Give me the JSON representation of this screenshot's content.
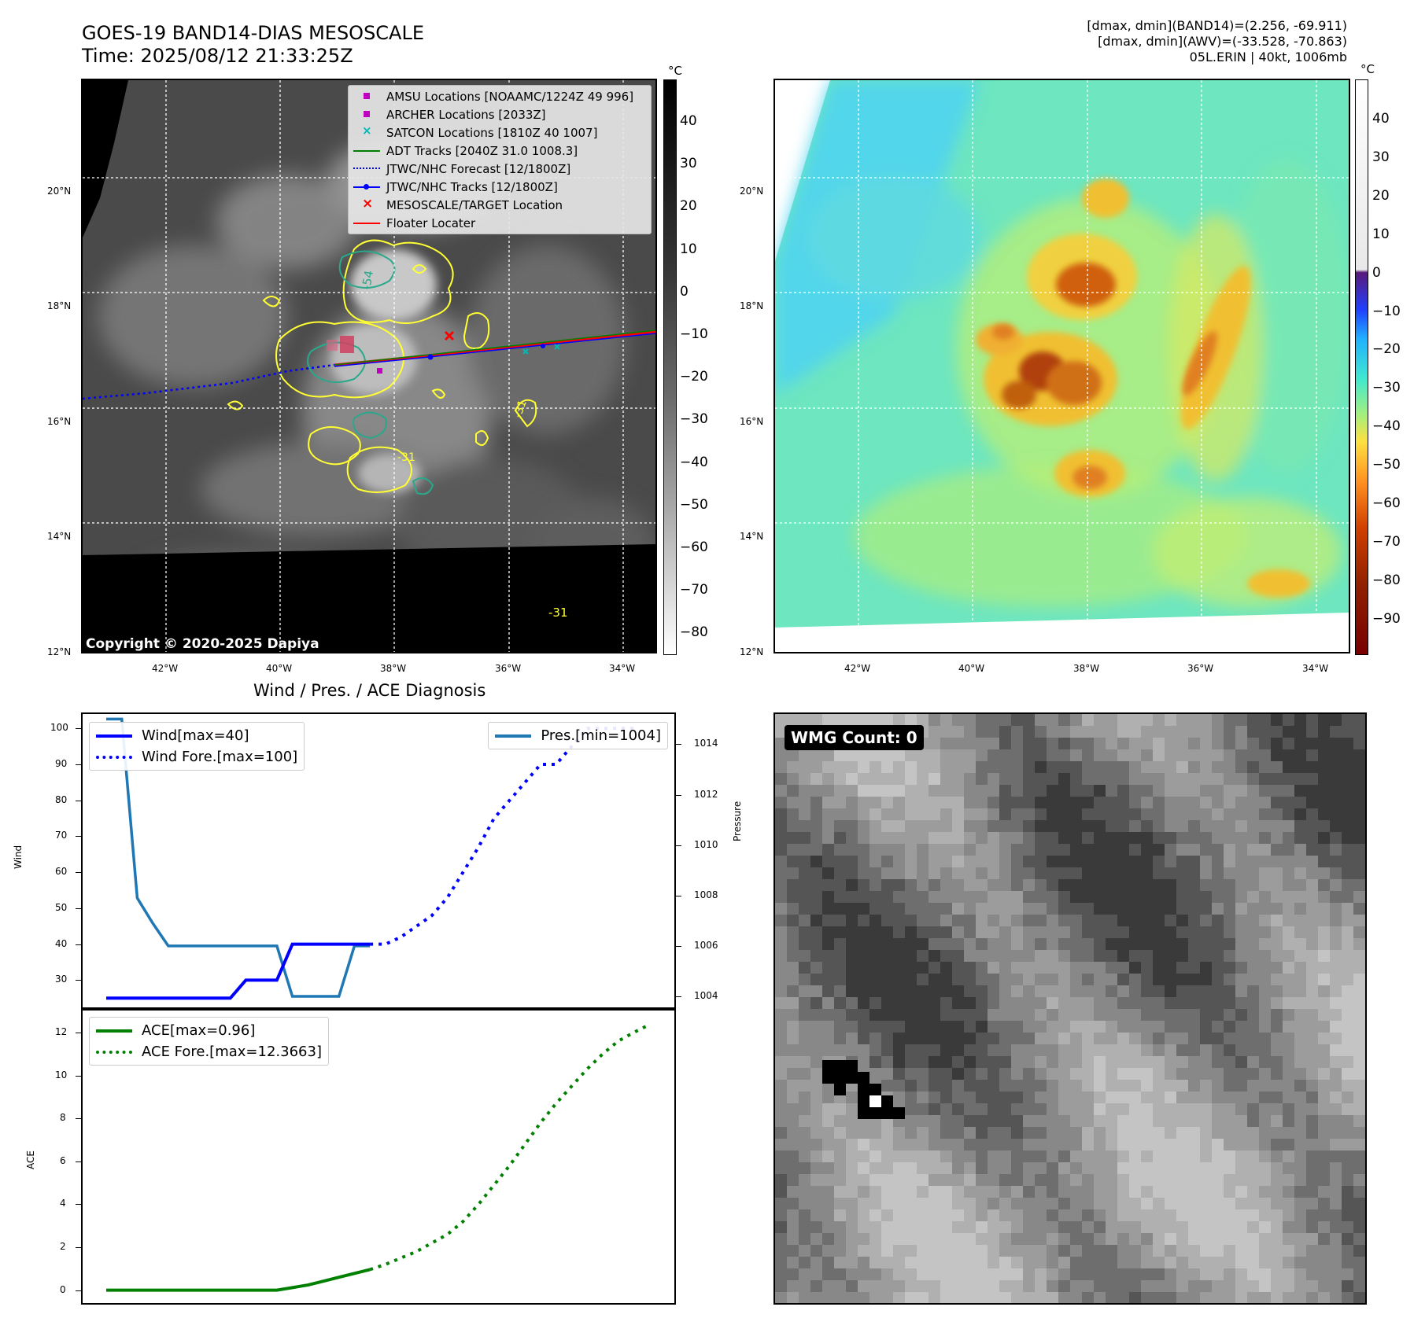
{
  "header": {
    "title_line1": "GOES-19 BAND14-DIAS MESOSCALE",
    "title_line2": "Time: 2025/08/12 21:33:25Z",
    "info_line1": "[dmax, dmin](BAND14)=(2.256, -69.911)",
    "info_line2": "[dmax, dmin](AWV)=(-33.528, -70.863)",
    "info_line3": "05L.ERIN | 40kt, 1006mb"
  },
  "ir_map": {
    "lat_labels": [
      "20°N",
      "18°N",
      "16°N",
      "14°N",
      "12°N"
    ],
    "lon_labels": [
      "42°W",
      "40°W",
      "38°W",
      "36°W",
      "34°W"
    ],
    "colorbar_unit": "°C",
    "colorbar_ticks": [
      "40",
      "30",
      "20",
      "10",
      "0",
      "−10",
      "−20",
      "−30",
      "−40",
      "−50",
      "−60",
      "−70",
      "−80"
    ],
    "contour_labels": [
      "-54",
      "-31",
      "-31",
      "-31"
    ],
    "copyright": "Copyright © 2020-2025 Dapiya",
    "legend": [
      {
        "label": "AMSU Locations [NOAAMC/1224Z 49 996]",
        "symbol": "square",
        "color": "#c000c0"
      },
      {
        "label": "ARCHER Locations [2033Z]",
        "symbol": "square",
        "color": "#c000c0"
      },
      {
        "label": "SATCON Locations [1810Z 40 1007]",
        "symbol": "x",
        "color": "#00b8b8"
      },
      {
        "label": "ADT Tracks [2040Z 31.0 1008.3]",
        "symbol": "line",
        "color": "#008000"
      },
      {
        "label": "JTWC/NHC Forecast [12/1800Z]",
        "symbol": "dotted",
        "color": "#0000ff"
      },
      {
        "label": "JTWC/NHC Tracks [12/1800Z]",
        "symbol": "line-dot",
        "color": "#0000ff"
      },
      {
        "label": "MESOSCALE/TARGET Location",
        "symbol": "x",
        "color": "#ff0000"
      },
      {
        "label": "Floater Locater",
        "symbol": "line",
        "color": "#ff0000"
      }
    ]
  },
  "wv_map": {
    "lat_labels": [
      "20°N",
      "18°N",
      "16°N",
      "14°N",
      "12°N"
    ],
    "lon_labels": [
      "42°W",
      "40°W",
      "38°W",
      "36°W",
      "34°W"
    ],
    "colorbar_unit": "°C",
    "colorbar_ticks": [
      "40",
      "30",
      "20",
      "10",
      "0",
      "−10",
      "−20",
      "−30",
      "−40",
      "−50",
      "−60",
      "−70",
      "−80",
      "−90"
    ]
  },
  "diagnosis": {
    "title": "Wind / Pres. / ACE Diagnosis",
    "wind_axis_label": "Wind",
    "pressure_axis_label": "Pressure",
    "ace_axis_label": "ACE",
    "wind_legend": [
      "Wind[max=40]",
      "Wind Fore.[max=100]"
    ],
    "pres_legend": [
      "Pres.[min=1004]"
    ],
    "ace_legend": [
      "ACE[max=0.96]",
      "ACE Fore.[max=12.3663]"
    ],
    "wind_ticks": [
      "100",
      "90",
      "80",
      "70",
      "60",
      "50",
      "40",
      "30"
    ],
    "pres_ticks": [
      "1014",
      "1012",
      "1010",
      "1008",
      "1006",
      "1004"
    ],
    "ace_ticks": [
      "12",
      "10",
      "8",
      "6",
      "4",
      "2",
      "0"
    ]
  },
  "wmg": {
    "label": "WMG Count: 0"
  },
  "chart_data": [
    {
      "type": "line",
      "title": "Wind / Pres. / ACE Diagnosis",
      "ylabel": "Wind",
      "ylim": [
        22,
        104
      ],
      "series": [
        {
          "name": "Wind[max=40]",
          "style": "solid",
          "color": "#0000ff",
          "x": [
            0,
            1,
            2,
            3,
            4,
            5,
            6,
            7,
            8,
            9,
            10,
            11,
            12,
            13,
            14,
            15,
            16,
            17
          ],
          "values": [
            25,
            25,
            25,
            25,
            25,
            25,
            25,
            25,
            25,
            30,
            30,
            30,
            40,
            40,
            40,
            40,
            40,
            40
          ]
        },
        {
          "name": "Wind Fore.[max=100]",
          "style": "dotted",
          "color": "#0000ff",
          "x": [
            17,
            18,
            19,
            20,
            21,
            22,
            23,
            24,
            25,
            26,
            27,
            28,
            29,
            30,
            31,
            32,
            33,
            34
          ],
          "values": [
            40,
            40,
            42,
            45,
            48,
            53,
            60,
            67,
            75,
            80,
            85,
            90,
            90,
            95,
            100,
            100,
            100,
            100
          ]
        }
      ]
    },
    {
      "type": "line",
      "ylabel": "Pressure",
      "ylim": [
        1003.5,
        1015.2
      ],
      "series": [
        {
          "name": "Pres.[min=1004]",
          "color": "#1f77b4",
          "x": [
            0,
            1,
            2,
            3,
            4,
            5,
            6,
            7,
            8,
            9,
            10,
            11,
            12,
            13,
            14,
            15,
            16,
            17
          ],
          "values": [
            1015,
            1015,
            1007.9,
            1006.9,
            1006,
            1006,
            1006,
            1006,
            1006,
            1006,
            1006,
            1006,
            1004,
            1004,
            1004,
            1004,
            1006,
            1006
          ]
        }
      ]
    },
    {
      "type": "line",
      "ylabel": "ACE",
      "ylim": [
        -0.6,
        13.1
      ],
      "series": [
        {
          "name": "ACE[max=0.96]",
          "style": "solid",
          "color": "#008000",
          "x": [
            0,
            1,
            2,
            3,
            4,
            5,
            6,
            7,
            8,
            9,
            10,
            11,
            12,
            13,
            14,
            15,
            16,
            17
          ],
          "values": [
            0,
            0,
            0,
            0,
            0,
            0,
            0,
            0,
            0,
            0,
            0,
            0,
            0.12,
            0.24,
            0.42,
            0.6,
            0.78,
            0.96
          ]
        },
        {
          "name": "ACE Fore.[max=12.3663]",
          "style": "dotted",
          "color": "#008000",
          "x": [
            17,
            18,
            19,
            20,
            21,
            22,
            23,
            24,
            25,
            26,
            27,
            28,
            29,
            30,
            31,
            32,
            33,
            34,
            35
          ],
          "values": [
            0.96,
            1.2,
            1.5,
            1.8,
            2.2,
            2.6,
            3.2,
            4.0,
            4.9,
            5.8,
            6.8,
            7.8,
            8.7,
            9.5,
            10.3,
            11.0,
            11.6,
            12.0,
            12.3663
          ]
        }
      ]
    }
  ]
}
